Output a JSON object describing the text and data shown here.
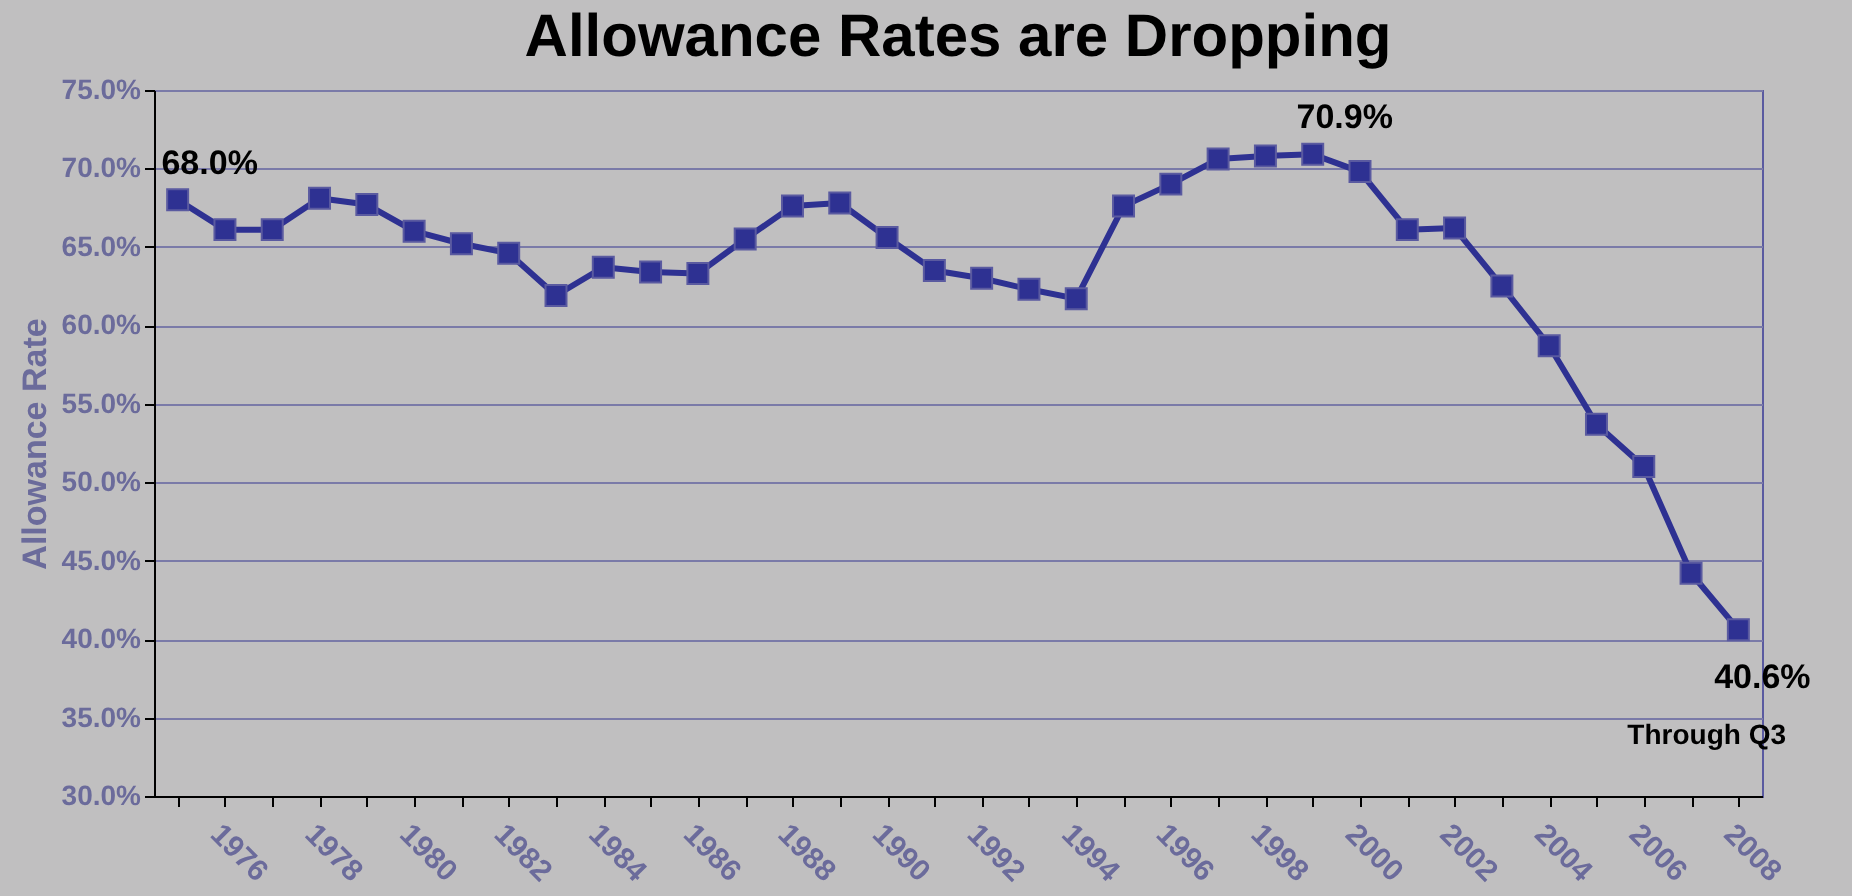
{
  "chart_data": {
    "type": "line",
    "title": "Allowance Rates are Dropping",
    "ylabel": "Allowance Rate",
    "categories": [
      null,
      "1976",
      null,
      "1978",
      null,
      "1980",
      null,
      "1982",
      null,
      "1984",
      null,
      "1986",
      null,
      "1988",
      null,
      "1990",
      null,
      "1992",
      null,
      "1994",
      null,
      "1996",
      null,
      "1998",
      null,
      "2000",
      null,
      "2002",
      null,
      "2004",
      null,
      "2006",
      null,
      "2008"
    ],
    "series": [
      {
        "color": "#2e3192",
        "values": [
          68.0,
          66.1,
          66.1,
          68.1,
          67.7,
          66.0,
          65.2,
          64.6,
          61.9,
          63.7,
          63.4,
          63.3,
          65.5,
          67.6,
          67.8,
          65.6,
          63.5,
          63.0,
          62.3,
          61.7,
          67.6,
          69.0,
          70.6,
          70.8,
          70.9,
          69.8,
          66.1,
          66.2,
          62.5,
          58.7,
          53.7,
          51.0,
          44.2,
          40.6
        ],
        "value_labels": [
          "68.0%",
          null,
          null,
          null,
          null,
          null,
          null,
          null,
          null,
          null,
          null,
          null,
          null,
          null,
          null,
          null,
          null,
          null,
          null,
          null,
          null,
          null,
          null,
          null,
          "70.9%",
          null,
          null,
          null,
          null,
          null,
          null,
          null,
          null,
          "40.6%"
        ]
      }
    ],
    "annotations": [
      "Through Q3"
    ],
    "ylim": [
      30,
      75
    ],
    "yticks": [
      {
        "value": 30,
        "label": "30.0%"
      },
      {
        "value": 35,
        "label": "35.0%"
      },
      {
        "value": 40,
        "label": "40.0%"
      },
      {
        "value": 45,
        "label": "45.0%"
      },
      {
        "value": 50,
        "label": "50.0%"
      },
      {
        "value": 55,
        "label": "55.0%"
      },
      {
        "value": 60,
        "label": "60.0%"
      },
      {
        "value": 65,
        "label": "65.0%"
      },
      {
        "value": 70,
        "label": "70.0%"
      },
      {
        "value": 75,
        "label": "75.0%"
      }
    ],
    "grid": "y",
    "marker": "square",
    "line_style": "solid"
  }
}
